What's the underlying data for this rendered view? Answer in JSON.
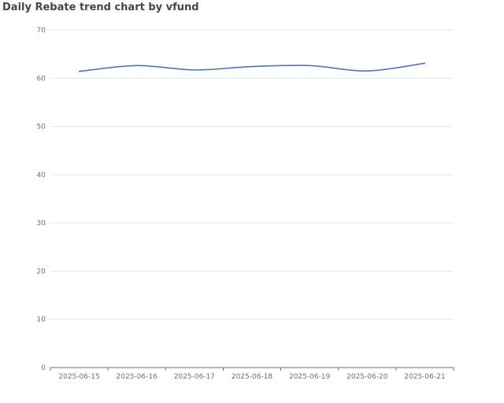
{
  "chart_data": {
    "type": "line",
    "title": "Daily Rebate trend chart by vfund",
    "xlabel": "",
    "ylabel": "",
    "categories": [
      "2025-06-15",
      "2025-06-16",
      "2025-06-17",
      "2025-06-18",
      "2025-06-19",
      "2025-06-20",
      "2025-06-21"
    ],
    "series": [
      {
        "values": [
          61.4,
          62.6,
          61.7,
          62.4,
          62.6,
          61.5,
          63.1
        ]
      }
    ],
    "ylim": [
      0,
      70
    ],
    "yticks": [
      0,
      10,
      20,
      30,
      40,
      50,
      60,
      70
    ],
    "grid": true,
    "smooth": true,
    "line_color": "#5470c6",
    "grid_color": "#e0e6f1",
    "axis_color": "#6e7079"
  }
}
